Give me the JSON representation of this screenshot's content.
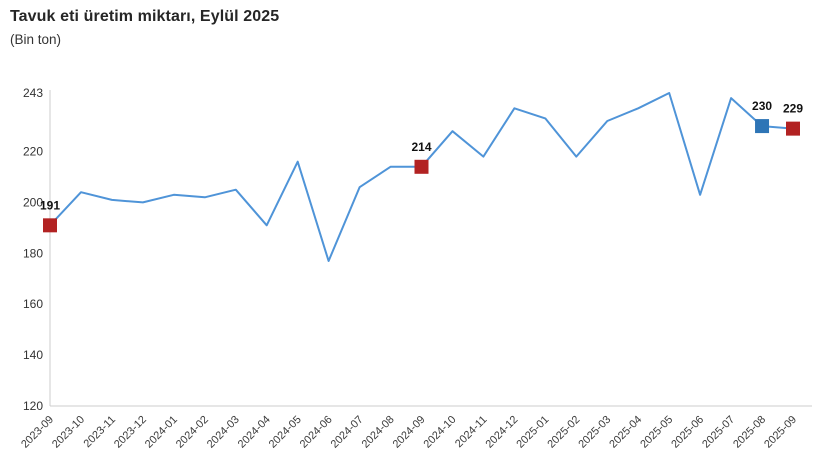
{
  "chart": {
    "title": "Tavuk eti üretim miktarı, Eylül 2025",
    "subtitle": "(Bin ton)"
  },
  "chart_data": {
    "type": "line",
    "title": "Tavuk eti üretim miktarı, Eylül 2025",
    "subtitle": "(Bin ton)",
    "ylabel": "Bin ton",
    "xlabel": "",
    "x": [
      "2023-09",
      "2023-10",
      "2023-11",
      "2023-12",
      "2024-01",
      "2024-02",
      "2024-03",
      "2024-04",
      "2024-05",
      "2024-06",
      "2024-07",
      "2024-08",
      "2024-09",
      "2024-10",
      "2024-11",
      "2024-12",
      "2025-01",
      "2025-02",
      "2025-03",
      "2025-04",
      "2025-05",
      "2025-06",
      "2025-07",
      "2025-08",
      "2025-09"
    ],
    "values": [
      191,
      204,
      201,
      200,
      203,
      202,
      205,
      191,
      216,
      177,
      206,
      214,
      214,
      228,
      218,
      237,
      233,
      218,
      232,
      237,
      243,
      203,
      241,
      230,
      229
    ],
    "ylim": [
      120,
      243
    ],
    "yticks": [
      120,
      140,
      160,
      180,
      200,
      220,
      243
    ],
    "grid": false,
    "legend": "none",
    "line_color": "#4f94d8",
    "axis_color": "#cccccc",
    "labeled_points": [
      {
        "x": "2023-09",
        "value": 191,
        "label": "191",
        "marker_color": "#b22222"
      },
      {
        "x": "2024-09",
        "value": 214,
        "label": "214",
        "marker_color": "#b22222"
      },
      {
        "x": "2025-08",
        "value": 230,
        "label": "230",
        "marker_color": "#2e75b6"
      },
      {
        "x": "2025-09",
        "value": 229,
        "label": "229",
        "marker_color": "#b22222"
      }
    ]
  }
}
